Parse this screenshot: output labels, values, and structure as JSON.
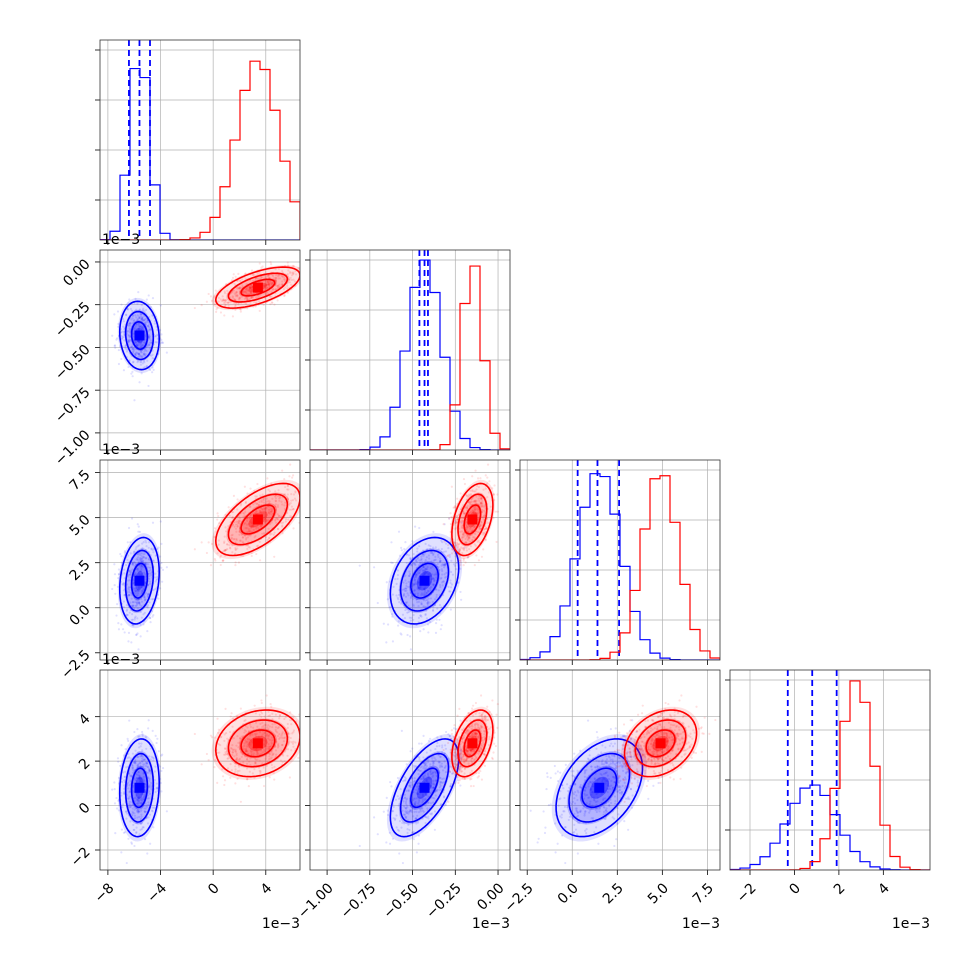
{
  "chart_data": {
    "type": "scatter",
    "title": "",
    "grid": true,
    "colors": {
      "blue_series": "#0000ff",
      "red_series": "#ff0000"
    },
    "parameters": [
      {
        "range": [
          -8.6,
          6.6
        ],
        "ticks": [
          -8,
          -4,
          0,
          4
        ],
        "tick_labels": [
          "−8",
          "−4",
          "0",
          "4"
        ],
        "offset_label": "1e−3"
      },
      {
        "range": [
          -1.1,
          0.07
        ],
        "ticks": [
          -1.0,
          -0.75,
          -0.5,
          -0.25,
          0.0
        ],
        "tick_labels": [
          "−1.00",
          "−0.75",
          "−0.50",
          "−0.25",
          "0.00"
        ],
        "offset_label": "1e−3"
      },
      {
        "range": [
          -2.9,
          8.2
        ],
        "ticks": [
          -2.5,
          0.0,
          2.5,
          5.0,
          7.5
        ],
        "tick_labels": [
          "−2.5",
          "0.0",
          "2.5",
          "5.0",
          "7.5"
        ],
        "offset_label": "1e−3"
      },
      {
        "range": [
          -2.9,
          6.1
        ],
        "ticks": [
          -2,
          0,
          2,
          4
        ],
        "tick_labels": [
          "−2",
          "0",
          "2",
          "4"
        ],
        "offset_label": "1e−3"
      }
    ],
    "series": [
      {
        "color": "#0000ff",
        "mean": [
          -5.6,
          -0.43,
          1.5,
          0.8
        ],
        "std": [
          0.75,
          0.1,
          1.2,
          1.1
        ],
        "corr": [
          [
            1,
            -0.1,
            0.2,
            0.1
          ],
          [
            -0.1,
            1,
            0.3,
            0.6
          ],
          [
            0.2,
            0.3,
            1,
            0.4
          ],
          [
            0.1,
            0.6,
            0.4,
            1
          ]
        ],
        "quantiles_16_50_84": [
          [
            -6.4,
            -5.6,
            -4.8
          ],
          [
            -0.46,
            -0.43,
            -0.41
          ],
          [
            0.3,
            1.4,
            2.6
          ],
          [
            -0.3,
            0.8,
            1.9
          ]
        ],
        "hist_peaks": [
          1.0,
          1.0,
          1.0,
          0.45
        ]
      },
      {
        "color": "#ff0000",
        "mean": [
          3.4,
          -0.15,
          4.9,
          2.8
        ],
        "std": [
          1.6,
          0.06,
          1.0,
          0.75
        ],
        "corr": [
          [
            1,
            0.6,
            0.6,
            0.2
          ],
          [
            0.6,
            1,
            0.4,
            0.4
          ],
          [
            0.6,
            0.4,
            1,
            0.3
          ],
          [
            0.2,
            0.4,
            0.3,
            1
          ]
        ],
        "hist_peaks": [
          0.95,
          1.0,
          1.0,
          1.0
        ]
      }
    ]
  }
}
